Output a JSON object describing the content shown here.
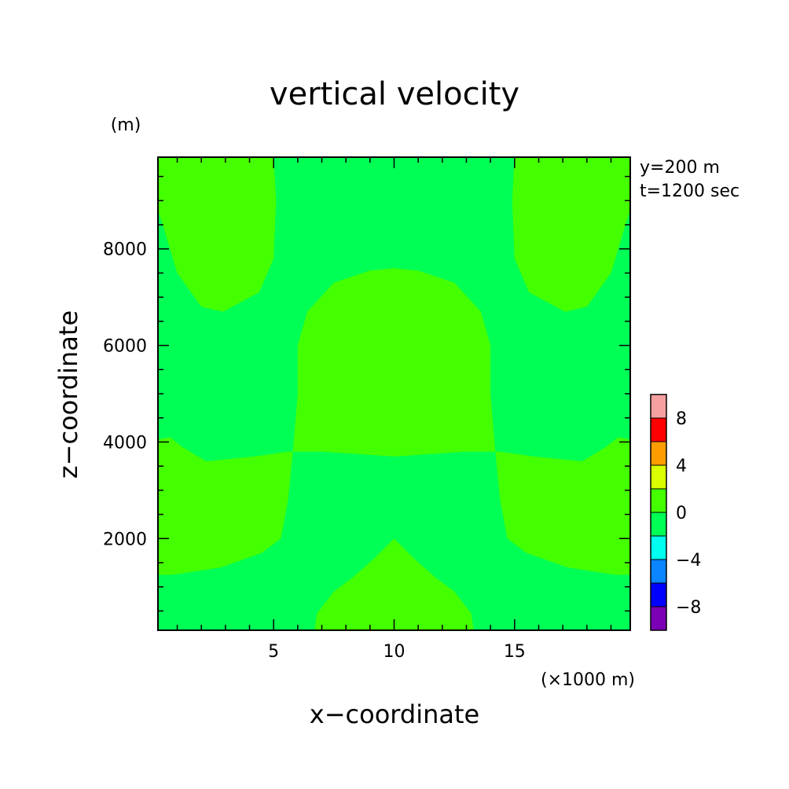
{
  "chart_data": {
    "type": "heatmap",
    "title": "vertical velocity",
    "xlabel": "x−coordinate",
    "ylabel": "z−coordinate",
    "x_unit": "(×1000 m)",
    "y_unit": "(m)",
    "annotations": [
      "y=200 m",
      "t=1200 sec"
    ],
    "xlim": [
      0.2,
      19.8
    ],
    "ylim": [
      100,
      9900
    ],
    "x_ticks": [
      5,
      10,
      15
    ],
    "y_ticks": [
      2000,
      4000,
      6000,
      8000
    ],
    "x_tick_labels": [
      "5",
      "10",
      "15"
    ],
    "y_tick_labels": [
      "2000",
      "4000",
      "6000",
      "8000"
    ],
    "background_level": "-2 to 0",
    "regions": [
      {
        "name": "upper-left lobe",
        "level": "0 to 2",
        "shape": [
          [
            0.2,
            9900
          ],
          [
            5.0,
            9900
          ],
          [
            5.1,
            9000
          ],
          [
            5.0,
            7800
          ],
          [
            4.4,
            7100
          ],
          [
            2.9,
            6700
          ],
          [
            2.0,
            6800
          ],
          [
            1.0,
            7500
          ],
          [
            0.4,
            8500
          ],
          [
            0.2,
            8800
          ]
        ]
      },
      {
        "name": "upper-right lobe",
        "level": "0 to 2",
        "shape": [
          [
            19.8,
            9900
          ],
          [
            15.0,
            9900
          ],
          [
            14.9,
            9000
          ],
          [
            15.0,
            7800
          ],
          [
            15.6,
            7100
          ],
          [
            17.1,
            6700
          ],
          [
            18.0,
            6800
          ],
          [
            19.0,
            7500
          ],
          [
            19.6,
            8500
          ],
          [
            19.8,
            8800
          ]
        ]
      },
      {
        "name": "central dome",
        "level": "0 to 2",
        "shape": [
          [
            5.8,
            3800
          ],
          [
            6.0,
            5000
          ],
          [
            6.0,
            6000
          ],
          [
            6.4,
            6700
          ],
          [
            7.5,
            7300
          ],
          [
            9.0,
            7550
          ],
          [
            10.0,
            7600
          ],
          [
            11.0,
            7550
          ],
          [
            12.5,
            7300
          ],
          [
            13.6,
            6700
          ],
          [
            14.0,
            6000
          ],
          [
            14.0,
            5000
          ],
          [
            14.2,
            3800
          ],
          [
            13.0,
            3800
          ],
          [
            11.5,
            3750
          ],
          [
            10.0,
            3700
          ],
          [
            8.5,
            3750
          ],
          [
            7.0,
            3800
          ]
        ]
      },
      {
        "name": "left middle band",
        "level": "0 to 2",
        "shape": [
          [
            0.2,
            4050
          ],
          [
            0.7,
            4100
          ],
          [
            1.2,
            3900
          ],
          [
            2.2,
            3600
          ],
          [
            4.2,
            3700
          ],
          [
            5.6,
            3800
          ],
          [
            5.8,
            3800
          ],
          [
            5.6,
            2800
          ],
          [
            5.3,
            2000
          ],
          [
            4.5,
            1700
          ],
          [
            2.8,
            1400
          ],
          [
            1.5,
            1300
          ],
          [
            0.8,
            1250
          ],
          [
            0.2,
            1250
          ]
        ]
      },
      {
        "name": "right middle band",
        "level": "0 to 2",
        "shape": [
          [
            19.8,
            4050
          ],
          [
            19.3,
            4100
          ],
          [
            18.8,
            3900
          ],
          [
            17.8,
            3600
          ],
          [
            15.8,
            3700
          ],
          [
            14.4,
            3800
          ],
          [
            14.2,
            3800
          ],
          [
            14.4,
            2800
          ],
          [
            14.7,
            2000
          ],
          [
            15.5,
            1700
          ],
          [
            17.2,
            1400
          ],
          [
            18.5,
            1300
          ],
          [
            19.2,
            1250
          ],
          [
            19.8,
            1250
          ]
        ]
      },
      {
        "name": "bottom center mound",
        "level": "0 to 2",
        "shape": [
          [
            6.7,
            100
          ],
          [
            6.8,
            450
          ],
          [
            7.5,
            900
          ],
          [
            8.3,
            1200
          ],
          [
            9.2,
            1600
          ],
          [
            10.0,
            2000
          ],
          [
            10.8,
            1600
          ],
          [
            11.7,
            1200
          ],
          [
            12.5,
            900
          ],
          [
            13.2,
            450
          ],
          [
            13.3,
            100
          ]
        ]
      }
    ],
    "colorbar": {
      "tick_labels": [
        "8",
        "4",
        "0",
        "−4",
        "−8"
      ],
      "levels": [
        {
          "range": "-10 to -8",
          "color": "#7b00b5"
        },
        {
          "range": "-8 to -6",
          "color": "#0000ff"
        },
        {
          "range": "-6 to -4",
          "color": "#0a84ff"
        },
        {
          "range": "-4 to -2",
          "color": "#00ffee"
        },
        {
          "range": "-2 to 0",
          "color": "#00ff55"
        },
        {
          "range": "0 to 2",
          "color": "#44ff00"
        },
        {
          "range": "2 to 4",
          "color": "#d9ff00"
        },
        {
          "range": "4 to 6",
          "color": "#ff9d00"
        },
        {
          "range": "6 to 8",
          "color": "#ff0000"
        },
        {
          "range": "8 to 10",
          "color": "#f5a0a0"
        }
      ]
    },
    "colors": {
      "background": "#00ff55",
      "region": "#44ff00",
      "frame": "#000000"
    }
  }
}
